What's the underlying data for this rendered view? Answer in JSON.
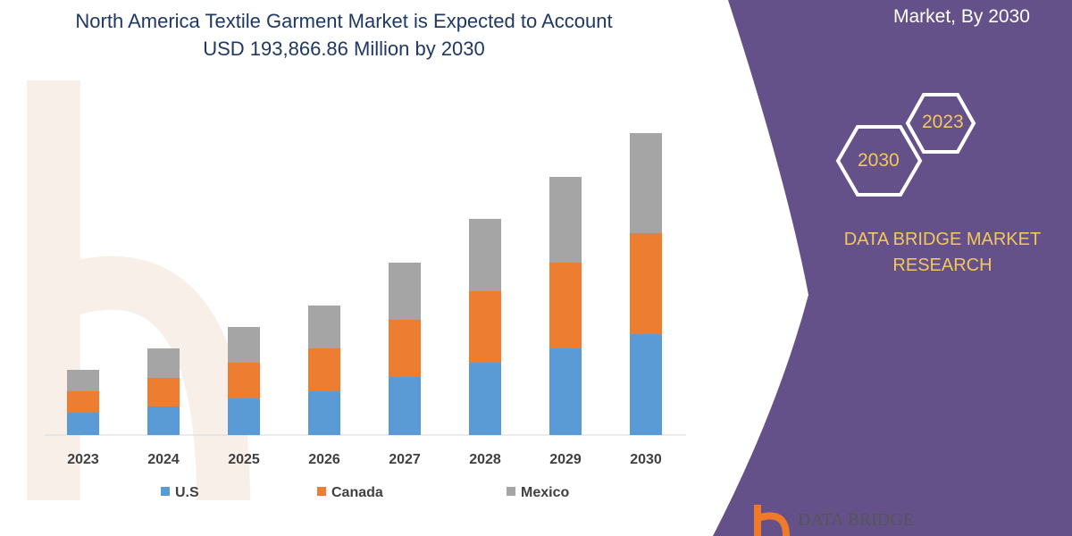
{
  "header": {
    "title_line1": "North America Textile Garment Market is Expected to Account",
    "title_line2": "USD 193,866.86 Million by 2030",
    "right_caption": "Market, By 2030"
  },
  "panel": {
    "hex_years": [
      "2023",
      "2030"
    ],
    "brand_line1": "DATA BRIDGE MARKET",
    "brand_line2": "RESEARCH",
    "logo_text": "DATA BRIDGE",
    "color": "#65518a",
    "accent": "#f2c75c"
  },
  "chart_data": {
    "type": "bar",
    "stacked": true,
    "categories": [
      "2023",
      "2024",
      "2025",
      "2026",
      "2027",
      "2028",
      "2029",
      "2030"
    ],
    "series": [
      {
        "name": "U.S",
        "color": "#5b9bd5",
        "values": [
          25,
          32,
          41,
          49,
          65,
          81,
          97,
          113
        ]
      },
      {
        "name": "Canada",
        "color": "#ed7d31",
        "values": [
          24,
          32,
          40,
          48,
          64,
          80,
          96,
          113
        ]
      },
      {
        "name": "Mexico",
        "color": "#a5a5a5",
        "values": [
          24,
          33,
          40,
          48,
          64,
          81,
          96,
          112
        ]
      }
    ],
    "grid": false,
    "legend": "bottom"
  }
}
